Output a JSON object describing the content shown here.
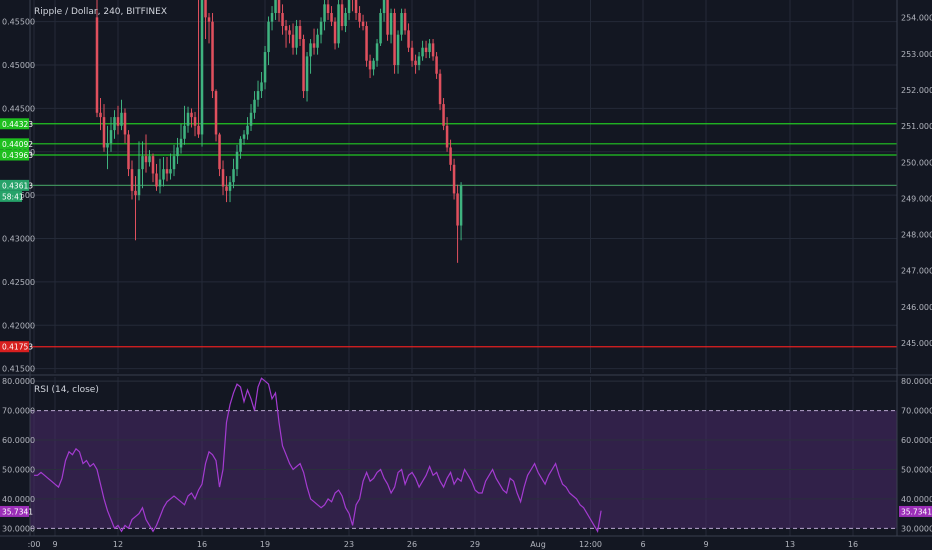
{
  "chart_data": [
    {
      "type": "candlestick",
      "title": "Ripple / Dollar, 240, BITFINEX",
      "left_axis": {
        "ylim": [
          0.4145,
          0.4575
        ],
        "ticks": [
          "0.41500",
          "0.42000",
          "0.42500",
          "0.43000",
          "0.43500",
          "0.44000",
          "0.44500",
          "0.45000",
          "0.45500"
        ]
      },
      "right_axis": {
        "ylim": [
          244.17,
          254.49
        ],
        "ticks": [
          "245.0000",
          "246.0000",
          "247.0000",
          "248.0000",
          "249.0000",
          "250.0000",
          "251.0000",
          "252.0000",
          "253.0000",
          "254.0000"
        ]
      },
      "x_labels": [
        {
          "label": ":00",
          "day": 0.0
        },
        {
          "label": "9",
          "day": 1.0
        },
        {
          "label": "12",
          "day": 4.0
        },
        {
          "label": "16",
          "day": 8.0
        },
        {
          "label": "19",
          "day": 11.0
        },
        {
          "label": "23",
          "day": 15.0
        },
        {
          "label": "26",
          "day": 18.0
        },
        {
          "label": "29",
          "day": 21.0
        },
        {
          "label": "Aug",
          "day": 24.0
        },
        {
          "label": "12:00",
          "day": 26.5
        },
        {
          "label": "6",
          "day": 29.0
        },
        {
          "label": "9",
          "day": 32.0
        },
        {
          "label": "13",
          "day": 36.0
        },
        {
          "label": "16",
          "day": 39.0
        }
      ],
      "horizontal_lines": [
        {
          "value": 0.44323,
          "color": "#22c722",
          "label": "0.44323",
          "label_bg": "#1fbf1f"
        },
        {
          "value": 0.44092,
          "color": "#22c722",
          "label": "0.44092",
          "label_bg": "#1fbf1f"
        },
        {
          "value": 0.43963,
          "color": "#22c722",
          "label": "0.43963",
          "label_bg": "#1fbf1f"
        },
        {
          "value": 0.43613,
          "color": "#3e8e5a",
          "label": "0.43613",
          "label_bg": "#26a269"
        },
        {
          "value": 0.41753,
          "color": "#e52020",
          "label": "0.41753",
          "label_bg": "#d81f1f"
        }
      ],
      "current_price_label": "58:41",
      "series": [
        {
          "name": "candles",
          "start_day": 3.0,
          "bar_days": 0.1667,
          "open": [
            0.4555,
            0.4445,
            0.444,
            0.4405,
            0.441,
            0.4425,
            0.444,
            0.443,
            0.4445,
            0.442,
            0.438,
            0.4355,
            0.435,
            0.438,
            0.4395,
            0.4388,
            0.4395,
            0.4375,
            0.436,
            0.4368,
            0.438,
            0.4375,
            0.438,
            0.4395,
            0.4405,
            0.4415,
            0.443,
            0.4445,
            0.444,
            0.443,
            0.442,
            0.462,
            0.4555,
            0.455,
            0.447,
            0.442,
            0.438,
            0.436,
            0.4355,
            0.4365,
            0.438,
            0.44,
            0.4415,
            0.442,
            0.443,
            0.4445,
            0.446,
            0.447,
            0.448,
            0.4515,
            0.455,
            0.456,
            0.4575,
            0.456,
            0.4545,
            0.454,
            0.4535,
            0.452,
            0.4545,
            0.453,
            0.447,
            0.451,
            0.4525,
            0.452,
            0.4535,
            0.455,
            0.457,
            0.456,
            0.455,
            0.4525,
            0.457,
            0.4545,
            0.456,
            0.458,
            0.4575,
            0.456,
            0.455,
            0.4545,
            0.4505,
            0.4495,
            0.4505,
            0.4525,
            0.456,
            0.4575,
            0.4535,
            0.456,
            0.45,
            0.4535,
            0.456,
            0.454,
            0.452,
            0.4505,
            0.45,
            0.451,
            0.452,
            0.4515,
            0.4525,
            0.451,
            0.449,
            0.4455,
            0.443,
            0.4405,
            0.4385,
            0.4352,
            0.4315
          ],
          "high": [
            0.458,
            0.4462,
            0.4455,
            0.443,
            0.444,
            0.4448,
            0.4453,
            0.446,
            0.445,
            0.4425,
            0.439,
            0.4372,
            0.4412,
            0.4412,
            0.442,
            0.4402,
            0.4398,
            0.4386,
            0.4392,
            0.4394,
            0.4394,
            0.4398,
            0.4408,
            0.4416,
            0.4432,
            0.4453,
            0.4452,
            0.445,
            0.4446,
            0.4635,
            0.464,
            0.4628,
            0.456,
            0.456,
            0.4472,
            0.4422,
            0.439,
            0.4372,
            0.4372,
            0.4392,
            0.4408,
            0.4418,
            0.4425,
            0.444,
            0.4455,
            0.447,
            0.4482,
            0.4492,
            0.4522,
            0.4556,
            0.4568,
            0.458,
            0.458,
            0.457,
            0.4552,
            0.4546,
            0.4548,
            0.4552,
            0.4552,
            0.4535,
            0.4515,
            0.453,
            0.4542,
            0.4542,
            0.4555,
            0.4575,
            0.4578,
            0.4568,
            0.4555,
            0.4575,
            0.458,
            0.4566,
            0.4585,
            0.459,
            0.458,
            0.4568,
            0.4558,
            0.455,
            0.4512,
            0.4508,
            0.453,
            0.4565,
            0.4585,
            0.458,
            0.4565,
            0.4565,
            0.454,
            0.4565,
            0.4565,
            0.4548,
            0.4528,
            0.4512,
            0.4515,
            0.4528,
            0.4528,
            0.453,
            0.453,
            0.4515,
            0.4495,
            0.4462,
            0.444,
            0.4414,
            0.4392,
            0.4362,
            0.4365
          ],
          "low": [
            0.444,
            0.4425,
            0.44,
            0.438,
            0.44,
            0.4415,
            0.442,
            0.4425,
            0.441,
            0.4372,
            0.4345,
            0.4298,
            0.4344,
            0.4358,
            0.4376,
            0.4383,
            0.4365,
            0.4355,
            0.4352,
            0.436,
            0.4366,
            0.4368,
            0.4372,
            0.4386,
            0.4398,
            0.4408,
            0.4422,
            0.4428,
            0.4418,
            0.4416,
            0.4406,
            0.453,
            0.4525,
            0.4462,
            0.4412,
            0.4372,
            0.435,
            0.4342,
            0.4342,
            0.4358,
            0.4372,
            0.4392,
            0.4408,
            0.4414,
            0.4424,
            0.4438,
            0.4452,
            0.4462,
            0.4472,
            0.45,
            0.454,
            0.4552,
            0.455,
            0.4535,
            0.452,
            0.4525,
            0.4512,
            0.4512,
            0.4522,
            0.4462,
            0.4458,
            0.449,
            0.4512,
            0.4512,
            0.4525,
            0.454,
            0.4552,
            0.4545,
            0.4518,
            0.452,
            0.454,
            0.4538,
            0.4552,
            0.4562,
            0.4552,
            0.4543,
            0.454,
            0.4498,
            0.4485,
            0.4488,
            0.4498,
            0.4522,
            0.455,
            0.4528,
            0.4525,
            0.449,
            0.449,
            0.4528,
            0.4535,
            0.4515,
            0.4498,
            0.449,
            0.4494,
            0.4505,
            0.4508,
            0.4508,
            0.4505,
            0.4484,
            0.4448,
            0.4425,
            0.44,
            0.4378,
            0.4345,
            0.4272,
            0.4298
          ],
          "close": [
            0.4445,
            0.444,
            0.4405,
            0.441,
            0.4425,
            0.444,
            0.443,
            0.4445,
            0.442,
            0.438,
            0.4355,
            0.435,
            0.438,
            0.4395,
            0.4388,
            0.4395,
            0.4375,
            0.436,
            0.4368,
            0.438,
            0.4375,
            0.438,
            0.4395,
            0.4405,
            0.4415,
            0.443,
            0.4445,
            0.444,
            0.443,
            0.442,
            0.462,
            0.4555,
            0.455,
            0.447,
            0.442,
            0.438,
            0.436,
            0.4355,
            0.4365,
            0.438,
            0.44,
            0.4415,
            0.442,
            0.443,
            0.4445,
            0.446,
            0.447,
            0.448,
            0.4515,
            0.455,
            0.456,
            0.4575,
            0.456,
            0.4545,
            0.454,
            0.4535,
            0.452,
            0.4545,
            0.453,
            0.447,
            0.451,
            0.4525,
            0.452,
            0.4535,
            0.455,
            0.457,
            0.456,
            0.455,
            0.4525,
            0.457,
            0.4545,
            0.456,
            0.458,
            0.4575,
            0.456,
            0.455,
            0.4545,
            0.4505,
            0.4495,
            0.4505,
            0.4525,
            0.456,
            0.4575,
            0.4535,
            0.456,
            0.45,
            0.4535,
            0.456,
            0.454,
            0.452,
            0.4505,
            0.45,
            0.451,
            0.452,
            0.4515,
            0.4525,
            0.451,
            0.449,
            0.4455,
            0.443,
            0.4405,
            0.4385,
            0.4352,
            0.4315,
            0.4361
          ]
        }
      ]
    },
    {
      "type": "line",
      "title": "RSI (14, close)",
      "ylim": [
        27.4,
        81.4
      ],
      "ticks": [
        "30.0000",
        "40.0000",
        "50.0000",
        "60.0000",
        "70.0000",
        "80.0000"
      ],
      "band": [
        30,
        70
      ],
      "band_color": "#4a2a6a",
      "line_color": "#a43bd1",
      "current_value": "35.7341",
      "series": [
        {
          "name": "RSI",
          "x_start_day": 0.0,
          "x_step_days": 0.1667,
          "values": [
            48,
            48,
            49,
            48,
            47,
            46,
            45,
            44,
            47,
            53,
            56,
            55,
            57,
            56,
            52,
            53,
            51,
            52,
            50,
            45,
            40,
            36,
            33,
            30,
            31,
            29,
            31,
            30,
            33,
            34,
            35,
            37,
            33,
            31,
            29,
            31,
            34,
            37,
            39,
            40,
            41,
            40,
            39,
            38,
            41,
            42,
            40,
            43,
            45,
            52,
            56,
            55,
            53,
            44,
            50,
            66,
            72,
            76,
            79,
            78,
            73,
            77,
            74,
            70,
            78,
            81,
            80,
            79,
            74,
            76,
            66,
            58,
            55,
            52,
            50,
            51,
            52,
            49,
            44,
            40,
            39,
            38,
            37,
            38,
            40,
            39,
            42,
            43,
            41,
            37,
            35,
            31,
            38,
            40,
            46,
            49,
            46,
            47,
            49,
            50,
            47,
            45,
            42,
            44,
            49,
            50,
            45,
            48,
            49,
            47,
            44,
            46,
            48,
            51,
            48,
            49,
            46,
            44,
            47,
            49,
            45,
            47,
            46,
            50,
            48,
            46,
            43,
            42,
            42,
            46,
            48,
            50,
            47,
            45,
            43,
            42,
            47,
            46,
            42,
            39,
            44,
            48,
            50,
            52,
            49,
            47,
            45,
            48,
            50,
            52,
            48,
            45,
            44,
            42,
            41,
            40,
            38,
            37,
            35,
            33,
            31,
            29,
            36
          ]
        }
      ]
    }
  ]
}
